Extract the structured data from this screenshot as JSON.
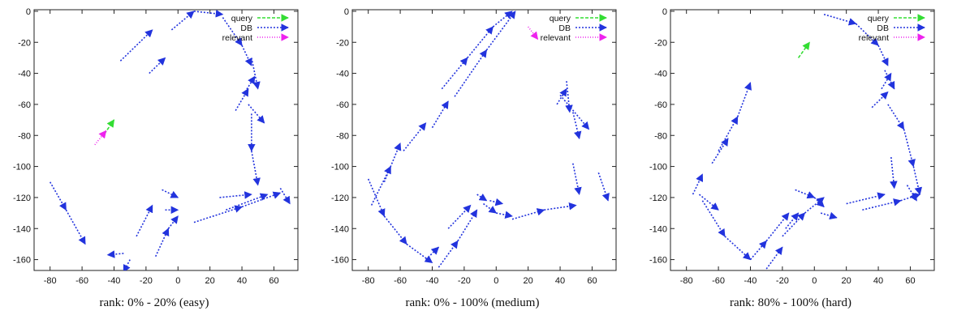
{
  "chart_data": [
    {
      "type": "vector-field",
      "caption": "rank: 0% - 20% (easy)",
      "xlim": [
        -90,
        75
      ],
      "ylim": [
        -167,
        1
      ],
      "xticks": [
        -80,
        -60,
        -40,
        -20,
        0,
        20,
        40,
        60
      ],
      "yticks": [
        0,
        -20,
        -40,
        -60,
        -80,
        -100,
        -120,
        -140,
        -160
      ],
      "legend": [
        {
          "label": "query",
          "color": "#33dd33",
          "dash": "4,2"
        },
        {
          "label": "DB",
          "color": "#2233dd",
          "dash": "2,2"
        },
        {
          "label": "relevant",
          "color": "#ee22ee",
          "dash": "1,2"
        }
      ],
      "segments": [
        {
          "series": "DB",
          "from": [
            -36,
            -32
          ],
          "to": [
            -16,
            -12
          ]
        },
        {
          "series": "DB",
          "from": [
            -18,
            -40
          ],
          "to": [
            -8,
            -30
          ]
        },
        {
          "series": "DB",
          "from": [
            -4,
            -12
          ],
          "to": [
            10,
            0
          ]
        },
        {
          "series": "DB",
          "from": [
            10,
            0
          ],
          "to": [
            28,
            -2
          ]
        },
        {
          "series": "DB",
          "from": [
            28,
            -4
          ],
          "to": [
            40,
            -22
          ]
        },
        {
          "series": "DB",
          "from": [
            40,
            -22
          ],
          "to": [
            46,
            -35
          ]
        },
        {
          "series": "DB",
          "from": [
            46,
            -30
          ],
          "to": [
            50,
            -50
          ]
        },
        {
          "series": "DB",
          "from": [
            42,
            -52
          ],
          "to": [
            48,
            -42
          ]
        },
        {
          "series": "DB",
          "from": [
            36,
            -64
          ],
          "to": [
            44,
            -50
          ]
        },
        {
          "series": "DB",
          "from": [
            44,
            -60
          ],
          "to": [
            54,
            -72
          ]
        },
        {
          "series": "DB",
          "from": [
            46,
            -66
          ],
          "to": [
            46,
            -90
          ]
        },
        {
          "series": "DB",
          "from": [
            46,
            -90
          ],
          "to": [
            50,
            -112
          ]
        },
        {
          "series": "DB",
          "from": [
            26,
            -120
          ],
          "to": [
            46,
            -118
          ]
        },
        {
          "series": "DB",
          "from": [
            30,
            -128
          ],
          "to": [
            56,
            -118
          ]
        },
        {
          "series": "DB",
          "from": [
            10,
            -136
          ],
          "to": [
            40,
            -126
          ]
        },
        {
          "series": "DB",
          "from": [
            40,
            -126
          ],
          "to": [
            64,
            -117
          ]
        },
        {
          "series": "DB",
          "from": [
            64,
            -114
          ],
          "to": [
            70,
            -124
          ]
        },
        {
          "series": "DB",
          "from": [
            -80,
            -110
          ],
          "to": [
            -70,
            -128
          ]
        },
        {
          "series": "DB",
          "from": [
            -70,
            -128
          ],
          "to": [
            -58,
            -150
          ]
        },
        {
          "series": "DB",
          "from": [
            -34,
            -156
          ],
          "to": [
            -44,
            -157
          ]
        },
        {
          "series": "DB",
          "from": [
            -10,
            -115
          ],
          "to": [
            0,
            -120
          ]
        },
        {
          "series": "DB",
          "from": [
            -26,
            -145
          ],
          "to": [
            -16,
            -125
          ]
        },
        {
          "series": "DB",
          "from": [
            -30,
            -160
          ],
          "to": [
            -34,
            -168
          ]
        },
        {
          "series": "DB",
          "from": [
            -14,
            -158
          ],
          "to": [
            -6,
            -140
          ]
        },
        {
          "series": "DB",
          "from": [
            -8,
            -128
          ],
          "to": [
            0,
            -128
          ]
        },
        {
          "series": "DB",
          "from": [
            -6,
            -140
          ],
          "to": [
            0,
            -132
          ]
        },
        {
          "series": "query",
          "from": [
            -46,
            -79
          ],
          "to": [
            -40,
            -70
          ]
        },
        {
          "series": "relevant",
          "from": [
            -52,
            -86
          ],
          "to": [
            -45,
            -77
          ]
        }
      ]
    },
    {
      "type": "vector-field",
      "caption": "rank: 0% - 100% (medium)",
      "xlim": [
        -90,
        75
      ],
      "ylim": [
        -167,
        1
      ],
      "xticks": [
        -80,
        -60,
        -40,
        -20,
        0,
        20,
        40,
        60
      ],
      "yticks": [
        0,
        -20,
        -40,
        -60,
        -80,
        -100,
        -120,
        -140,
        -160
      ],
      "legend": [
        {
          "label": "query",
          "color": "#33dd33",
          "dash": "4,2"
        },
        {
          "label": "DB",
          "color": "#2233dd",
          "dash": "2,2"
        },
        {
          "label": "relevant",
          "color": "#ee22ee",
          "dash": "1,2"
        }
      ],
      "segments": [
        {
          "series": "DB",
          "from": [
            -34,
            -50
          ],
          "to": [
            -18,
            -30
          ]
        },
        {
          "series": "DB",
          "from": [
            -18,
            -30
          ],
          "to": [
            -2,
            -10
          ]
        },
        {
          "series": "DB",
          "from": [
            -2,
            -10
          ],
          "to": [
            10,
            0
          ]
        },
        {
          "series": "DB",
          "from": [
            -26,
            -55
          ],
          "to": [
            -6,
            -25
          ]
        },
        {
          "series": "DB",
          "from": [
            -6,
            -25
          ],
          "to": [
            12,
            0
          ]
        },
        {
          "series": "DB",
          "from": [
            -58,
            -90
          ],
          "to": [
            -44,
            -72
          ]
        },
        {
          "series": "DB",
          "from": [
            -40,
            -75
          ],
          "to": [
            -30,
            -58
          ]
        },
        {
          "series": "DB",
          "from": [
            -78,
            -125
          ],
          "to": [
            -66,
            -100
          ]
        },
        {
          "series": "DB",
          "from": [
            -70,
            -110
          ],
          "to": [
            -60,
            -85
          ]
        },
        {
          "series": "DB",
          "from": [
            -80,
            -108
          ],
          "to": [
            -70,
            -132
          ]
        },
        {
          "series": "DB",
          "from": [
            -70,
            -132
          ],
          "to": [
            -56,
            -150
          ]
        },
        {
          "series": "DB",
          "from": [
            -56,
            -150
          ],
          "to": [
            -40,
            -162
          ]
        },
        {
          "series": "DB",
          "from": [
            -44,
            -160
          ],
          "to": [
            -36,
            -152
          ]
        },
        {
          "series": "DB",
          "from": [
            -36,
            -165
          ],
          "to": [
            -24,
            -148
          ]
        },
        {
          "series": "DB",
          "from": [
            -24,
            -148
          ],
          "to": [
            -12,
            -128
          ]
        },
        {
          "series": "DB",
          "from": [
            -30,
            -140
          ],
          "to": [
            -16,
            -125
          ]
        },
        {
          "series": "DB",
          "from": [
            -12,
            -118
          ],
          "to": [
            -6,
            -122
          ]
        },
        {
          "series": "DB",
          "from": [
            -8,
            -124
          ],
          "to": [
            0,
            -130
          ]
        },
        {
          "series": "DB",
          "from": [
            0,
            -130
          ],
          "to": [
            10,
            -132
          ]
        },
        {
          "series": "DB",
          "from": [
            10,
            -134
          ],
          "to": [
            30,
            -128
          ]
        },
        {
          "series": "DB",
          "from": [
            30,
            -128
          ],
          "to": [
            50,
            -125
          ]
        },
        {
          "series": "DB",
          "from": [
            -4,
            -122
          ],
          "to": [
            4,
            -124
          ]
        },
        {
          "series": "DB",
          "from": [
            44,
            -45
          ],
          "to": [
            46,
            -65
          ]
        },
        {
          "series": "DB",
          "from": [
            38,
            -60
          ],
          "to": [
            44,
            -50
          ]
        },
        {
          "series": "DB",
          "from": [
            40,
            -54
          ],
          "to": [
            58,
            -76
          ]
        },
        {
          "series": "DB",
          "from": [
            48,
            -65
          ],
          "to": [
            52,
            -82
          ]
        },
        {
          "series": "DB",
          "from": [
            48,
            -98
          ],
          "to": [
            52,
            -118
          ]
        },
        {
          "series": "DB",
          "from": [
            64,
            -104
          ],
          "to": [
            70,
            -122
          ]
        },
        {
          "series": "relevant",
          "from": [
            20,
            -10
          ],
          "to": [
            26,
            -18
          ]
        }
      ]
    },
    {
      "type": "vector-field",
      "caption": "rank: 80% - 100% (hard)",
      "xlim": [
        -90,
        75
      ],
      "ylim": [
        -167,
        1
      ],
      "xticks": [
        -80,
        -60,
        -40,
        -20,
        0,
        20,
        40,
        60
      ],
      "yticks": [
        0,
        -20,
        -40,
        -60,
        -80,
        -100,
        -120,
        -140,
        -160
      ],
      "legend": [
        {
          "label": "query",
          "color": "#33dd33",
          "dash": "4,2"
        },
        {
          "label": "DB",
          "color": "#2233dd",
          "dash": "2,2"
        },
        {
          "label": "relevant",
          "color": "#ee22ee",
          "dash": "1,2"
        }
      ],
      "segments": [
        {
          "series": "query",
          "from": [
            -10,
            -30
          ],
          "to": [
            -3,
            -20
          ]
        },
        {
          "series": "DB",
          "from": [
            -60,
            -90
          ],
          "to": [
            -48,
            -68
          ]
        },
        {
          "series": "DB",
          "from": [
            -48,
            -68
          ],
          "to": [
            -40,
            -46
          ]
        },
        {
          "series": "DB",
          "from": [
            -64,
            -98
          ],
          "to": [
            -54,
            -82
          ]
        },
        {
          "series": "DB",
          "from": [
            -76,
            -118
          ],
          "to": [
            -70,
            -105
          ]
        },
        {
          "series": "DB",
          "from": [
            -72,
            -118
          ],
          "to": [
            -60,
            -128
          ]
        },
        {
          "series": "DB",
          "from": [
            -70,
            -122
          ],
          "to": [
            -56,
            -145
          ]
        },
        {
          "series": "DB",
          "from": [
            -56,
            -145
          ],
          "to": [
            -40,
            -160
          ]
        },
        {
          "series": "DB",
          "from": [
            -40,
            -160
          ],
          "to": [
            -30,
            -148
          ]
        },
        {
          "series": "DB",
          "from": [
            -30,
            -148
          ],
          "to": [
            -16,
            -130
          ]
        },
        {
          "series": "DB",
          "from": [
            -20,
            -145
          ],
          "to": [
            -6,
            -130
          ]
        },
        {
          "series": "DB",
          "from": [
            -6,
            -130
          ],
          "to": [
            6,
            -120
          ]
        },
        {
          "series": "DB",
          "from": [
            -30,
            -166
          ],
          "to": [
            -20,
            -152
          ]
        },
        {
          "series": "DB",
          "from": [
            -18,
            -140
          ],
          "to": [
            -10,
            -130
          ]
        },
        {
          "series": "DB",
          "from": [
            -12,
            -115
          ],
          "to": [
            0,
            -120
          ]
        },
        {
          "series": "DB",
          "from": [
            0,
            -120
          ],
          "to": [
            6,
            -126
          ]
        },
        {
          "series": "DB",
          "from": [
            4,
            -130
          ],
          "to": [
            14,
            -133
          ]
        },
        {
          "series": "DB",
          "from": [
            20,
            -124
          ],
          "to": [
            44,
            -118
          ]
        },
        {
          "series": "DB",
          "from": [
            30,
            -128
          ],
          "to": [
            54,
            -122
          ]
        },
        {
          "series": "DB",
          "from": [
            54,
            -122
          ],
          "to": [
            66,
            -118
          ]
        },
        {
          "series": "DB",
          "from": [
            6,
            -2
          ],
          "to": [
            26,
            -8
          ]
        },
        {
          "series": "DB",
          "from": [
            26,
            -8
          ],
          "to": [
            40,
            -22
          ]
        },
        {
          "series": "DB",
          "from": [
            40,
            -22
          ],
          "to": [
            46,
            -35
          ]
        },
        {
          "series": "DB",
          "from": [
            44,
            -38
          ],
          "to": [
            50,
            -50
          ]
        },
        {
          "series": "DB",
          "from": [
            42,
            -50
          ],
          "to": [
            48,
            -40
          ]
        },
        {
          "series": "DB",
          "from": [
            36,
            -62
          ],
          "to": [
            46,
            -52
          ]
        },
        {
          "series": "DB",
          "from": [
            46,
            -60
          ],
          "to": [
            56,
            -76
          ]
        },
        {
          "series": "DB",
          "from": [
            56,
            -76
          ],
          "to": [
            62,
            -100
          ]
        },
        {
          "series": "DB",
          "from": [
            62,
            -100
          ],
          "to": [
            66,
            -118
          ]
        },
        {
          "series": "DB",
          "from": [
            48,
            -94
          ],
          "to": [
            50,
            -114
          ]
        },
        {
          "series": "DB",
          "from": [
            58,
            -112
          ],
          "to": [
            64,
            -122
          ]
        }
      ]
    }
  ]
}
